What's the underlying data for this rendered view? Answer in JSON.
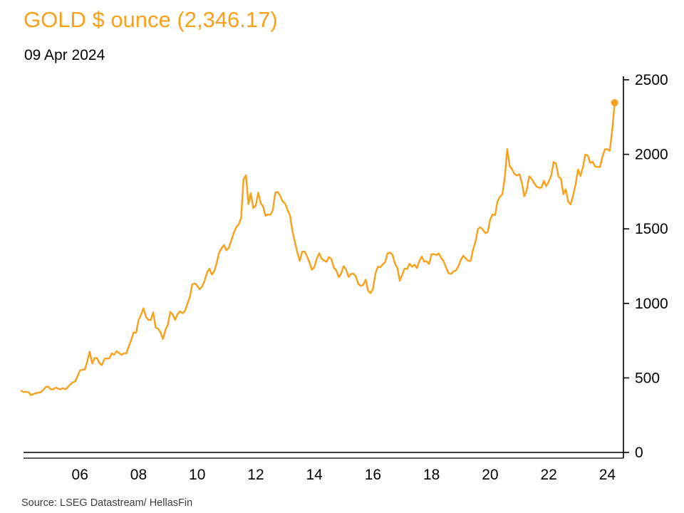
{
  "header": {
    "title": "GOLD $ ounce (2,346.17)",
    "date": "09 Apr 2024"
  },
  "footer": {
    "source": "Source: LSEG Datastream/ HellasFin"
  },
  "colors": {
    "accent": "#F9A11B",
    "axis": "#000000",
    "tick_text": "#000000",
    "source_text": "#3C3C3C"
  },
  "chart_data": {
    "type": "line",
    "title": "GOLD $ ounce (2,346.17)",
    "subtitle": "09 Apr 2024",
    "series_name": "Gold price ($ per ounce)",
    "x_start_year": 2004,
    "x_interval_months": 1,
    "values": [
      414,
      405,
      407,
      403,
      384,
      392,
      398,
      401,
      405,
      420,
      439,
      442,
      424,
      423,
      434,
      429,
      422,
      431,
      424,
      437,
      456,
      470,
      476,
      510,
      550,
      555,
      557,
      611,
      676,
      596,
      634,
      632,
      598,
      586,
      628,
      630,
      631,
      665,
      655,
      679,
      667,
      655,
      665,
      665,
      713,
      755,
      806,
      803,
      890,
      922,
      968,
      910,
      889,
      889,
      940,
      839,
      829,
      806,
      761,
      822,
      858,
      943,
      924,
      890,
      929,
      946,
      934,
      949,
      997,
      1043,
      1127,
      1135,
      1118,
      1095,
      1113,
      1149,
      1205,
      1233,
      1193,
      1216,
      1271,
      1342,
      1370,
      1391,
      1356,
      1373,
      1424,
      1473,
      1510,
      1529,
      1573,
      1830,
      1860,
      1666,
      1739,
      1640,
      1656,
      1743,
      1674,
      1650,
      1587,
      1597,
      1594,
      1626,
      1744,
      1747,
      1722,
      1685,
      1671,
      1627,
      1593,
      1485,
      1414,
      1343,
      1286,
      1347,
      1348,
      1316,
      1276,
      1225,
      1244,
      1301,
      1336,
      1299,
      1288,
      1279,
      1311,
      1296,
      1238,
      1222,
      1176,
      1201,
      1250,
      1227,
      1178,
      1198,
      1199,
      1181,
      1130,
      1118,
      1124,
      1159,
      1086,
      1068,
      1097,
      1200,
      1246,
      1242,
      1261,
      1276,
      1337,
      1340,
      1327,
      1267,
      1238,
      1152,
      1192,
      1234,
      1231,
      1266,
      1246,
      1260,
      1237,
      1283,
      1314,
      1280,
      1282,
      1264,
      1331,
      1330,
      1325,
      1335,
      1303,
      1281,
      1238,
      1202,
      1198,
      1215,
      1221,
      1250,
      1292,
      1320,
      1301,
      1286,
      1284,
      1359,
      1413,
      1500,
      1511,
      1495,
      1471,
      1479,
      1561,
      1597,
      1592,
      1683,
      1716,
      1732,
      1843,
      2035,
      1922,
      1900,
      1866,
      1858,
      1867,
      1808,
      1718,
      1760,
      1853,
      1835,
      1807,
      1784,
      1776,
      1777,
      1822,
      1787,
      1816,
      1856,
      1948,
      1937,
      1850,
      1836,
      1732,
      1765,
      1681,
      1664,
      1725,
      1797,
      1898,
      1854,
      1913,
      1999,
      1992,
      1942,
      1951,
      1918,
      1916,
      1915,
      1984,
      2034,
      2034,
      2024,
      2160,
      2346.17
    ],
    "last_value": 2346.17,
    "last_date_label": "09 Apr 2024",
    "ylim": [
      0,
      2500
    ],
    "yticks": [
      0,
      500,
      1000,
      1500,
      2000,
      2500
    ],
    "xticks": [
      2006,
      2008,
      2010,
      2012,
      2014,
      2016,
      2018,
      2020,
      2022,
      2024
    ],
    "xtick_labels": [
      "06",
      "08",
      "10",
      "12",
      "14",
      "16",
      "18",
      "20",
      "22",
      "24"
    ],
    "grid": false,
    "y_axis_side": "right",
    "line_color": "#F9A11B",
    "marker_last_point": true
  }
}
